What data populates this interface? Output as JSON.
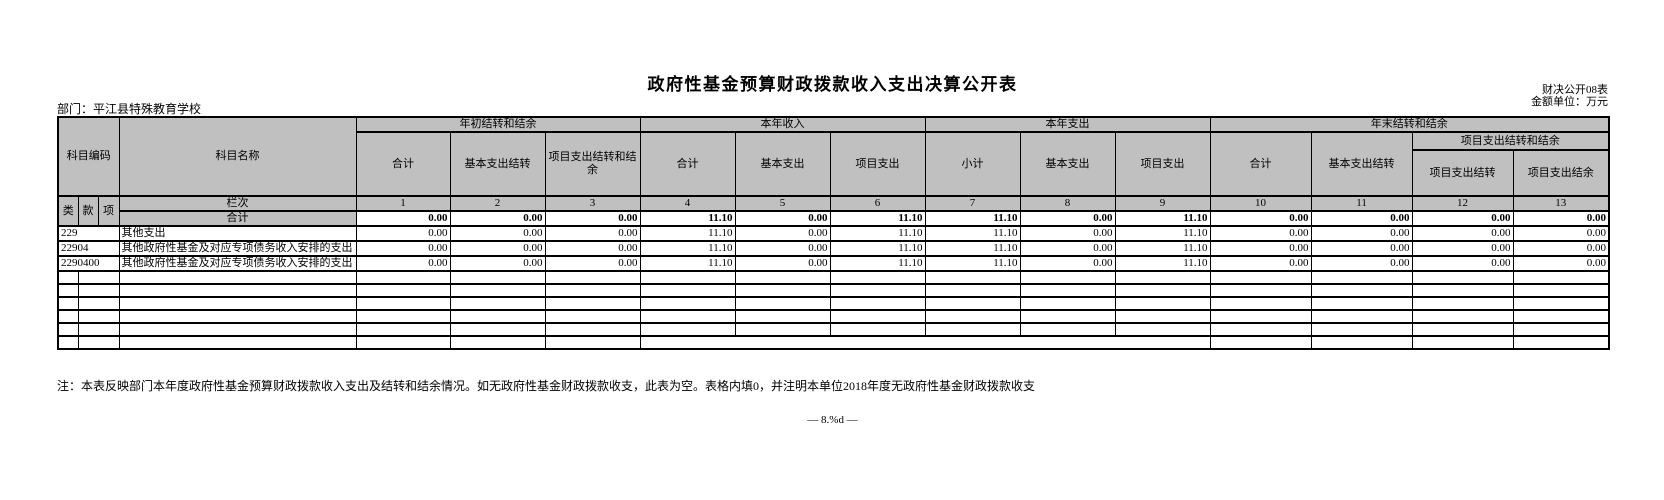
{
  "page": {
    "title": "政府性基金预算财政拨款收入支出决算公开表",
    "table_code": "财决公开08表",
    "unit_label": "金额单位：万元",
    "department": "部门：平江县特殊教育学校",
    "note": "注：本表反映部门本年度政府性基金预算财政拨款收入支出及结转和结余情况。如无政府性基金财政拨款收支，此表为空。表格内填0，并注明本单位2018年度无政府性基金财政拨款收支",
    "footer": "— 8.%d —"
  },
  "colors": {
    "header_bg": "#c0c0c0",
    "border": "#000000",
    "text": "#000000"
  },
  "table": {
    "header": {
      "subject_code": "科目编码",
      "subject_name": "科目名称",
      "groups": [
        {
          "label": "年初结转和结余",
          "cols": [
            "合计",
            "基本支出结转",
            "项目支出结转和结余"
          ]
        },
        {
          "label": "本年收入",
          "cols": [
            "合计",
            "基本支出",
            "项目支出"
          ]
        },
        {
          "label": "本年支出",
          "cols": [
            "小计",
            "基本支出",
            "项目支出"
          ]
        },
        {
          "label": "年末结转和结余",
          "cols": [
            "合计",
            "基本支出结转"
          ],
          "subgroup": {
            "label": "项目支出结转和结余",
            "cols": [
              "项目支出结转",
              "项目支出结余"
            ]
          }
        }
      ],
      "code_parts": [
        "类",
        "款",
        "项"
      ],
      "lanci_label": "栏次",
      "col_numbers": [
        "1",
        "2",
        "3",
        "4",
        "5",
        "6",
        "7",
        "8",
        "9",
        "10",
        "11",
        "12",
        "13"
      ]
    },
    "total_row": {
      "label": "合计",
      "values": [
        "0.00",
        "0.00",
        "0.00",
        "11.10",
        "0.00",
        "11.10",
        "11.10",
        "0.00",
        "11.10",
        "0.00",
        "0.00",
        "0.00",
        "0.00"
      ]
    },
    "rows": [
      {
        "code": "229",
        "name": "其他支出",
        "indent": 0,
        "values": [
          "0.00",
          "0.00",
          "0.00",
          "11.10",
          "0.00",
          "11.10",
          "11.10",
          "0.00",
          "11.10",
          "0.00",
          "0.00",
          "0.00",
          "0.00"
        ]
      },
      {
        "code": "22904",
        "name": "其他政府性基金及对应专项债务收入安排的支出",
        "indent": 0,
        "values": [
          "0.00",
          "0.00",
          "0.00",
          "11.10",
          "0.00",
          "11.10",
          "11.10",
          "0.00",
          "11.10",
          "0.00",
          "0.00",
          "0.00",
          "0.00"
        ]
      },
      {
        "code": "2290400",
        "name": "其他政府性基金及对应专项债务收入安排的支出",
        "indent": 1,
        "values": [
          "0.00",
          "0.00",
          "0.00",
          "11.10",
          "0.00",
          "11.10",
          "11.10",
          "0.00",
          "11.10",
          "0.00",
          "0.00",
          "0.00",
          "0.00"
        ]
      }
    ],
    "empty_row_count": 6
  }
}
